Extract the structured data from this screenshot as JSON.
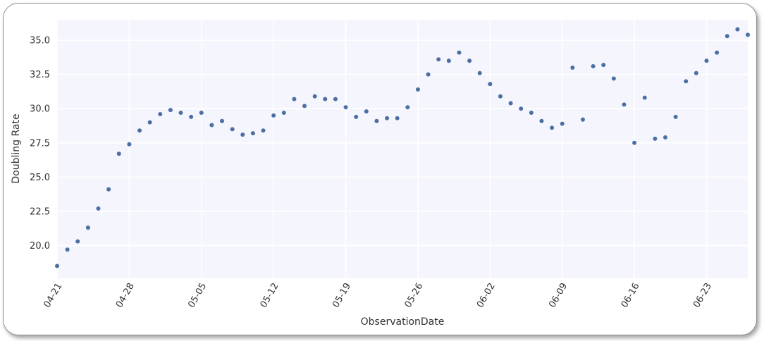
{
  "chart_data": {
    "type": "scatter",
    "title": "",
    "xlabel": "ObservationDate",
    "ylabel": "Doubling Rate",
    "x_start_date": "2020-04-21",
    "x_ticks": [
      "04-21",
      "04-28",
      "05-05",
      "05-12",
      "05-19",
      "05-26",
      "06-02",
      "06-09",
      "06-16",
      "06-23"
    ],
    "y_ticks": [
      "20.0",
      "22.5",
      "25.0",
      "27.5",
      "30.0",
      "32.5",
      "35.0"
    ],
    "ylim": [
      17.6,
      36.5
    ],
    "xlim_days": [
      0,
      67
    ],
    "grid": true,
    "point_color": "#4c6fa3",
    "x": [
      0,
      1,
      2,
      3,
      4,
      5,
      6,
      7,
      8,
      9,
      10,
      11,
      12,
      13,
      14,
      15,
      16,
      17,
      18,
      19,
      20,
      21,
      22,
      23,
      24,
      25,
      26,
      27,
      28,
      29,
      30,
      31,
      32,
      33,
      34,
      35,
      36,
      37,
      38,
      39,
      40,
      41,
      42,
      43,
      44,
      45,
      46,
      47,
      48,
      49,
      50,
      51,
      52,
      53,
      54,
      55,
      56,
      57,
      58,
      59,
      60,
      61,
      62,
      63,
      64,
      65,
      66,
      67
    ],
    "values": [
      18.5,
      19.7,
      20.3,
      21.3,
      22.7,
      24.1,
      26.7,
      27.4,
      28.4,
      29.0,
      29.6,
      29.9,
      29.7,
      29.4,
      29.7,
      28.8,
      29.1,
      28.5,
      28.1,
      28.2,
      28.4,
      29.5,
      29.7,
      30.7,
      30.2,
      30.9,
      30.7,
      30.7,
      30.1,
      29.4,
      29.8,
      29.1,
      29.3,
      29.3,
      30.1,
      31.4,
      32.5,
      33.6,
      33.5,
      34.1,
      33.5,
      32.6,
      31.8,
      30.9,
      30.4,
      30.0,
      29.7,
      29.1,
      28.6,
      28.9,
      33.0,
      29.2,
      33.1,
      33.2,
      32.2,
      30.3,
      27.5,
      30.8,
      27.8,
      27.9,
      29.4,
      32.0,
      32.6,
      33.5,
      34.1,
      35.3,
      35.8,
      35.4
    ]
  }
}
